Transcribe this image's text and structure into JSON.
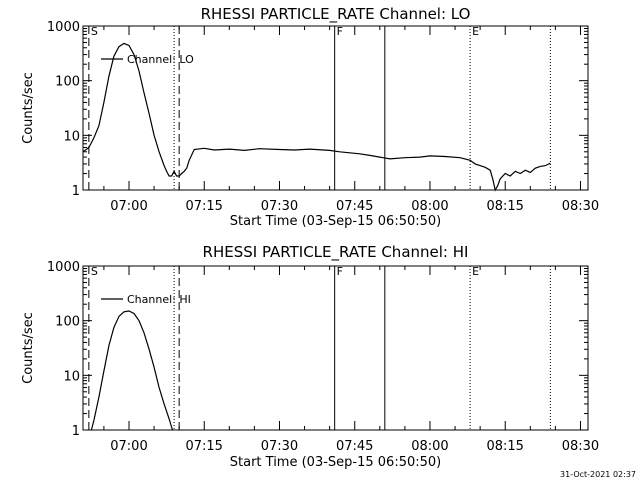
{
  "footer": {
    "date": "31-Oct-2021 02:37"
  },
  "chart_data": [
    {
      "type": "line",
      "title": "RHESSI PARTICLE_RATE Channel: LO",
      "xlabel": "Start Time (03-Sep-15 06:50:50)",
      "ylabel": "Counts/sec",
      "xlim": [
        "06:50:50",
        "08:31:30"
      ],
      "ylim": [
        1,
        1000
      ],
      "yscale": "log",
      "x_ticks": [
        "07:00",
        "07:15",
        "07:30",
        "07:45",
        "08:00",
        "08:15",
        "08:30"
      ],
      "y_ticks": [
        "1",
        "10",
        "100",
        "1000"
      ],
      "legend": "Channel: LO",
      "legend_position": "top-left",
      "markers": [
        {
          "label": "S",
          "time": "06:52:00",
          "style": "dashed"
        },
        {
          "label": "",
          "time": "07:09:00",
          "style": "dotted"
        },
        {
          "label": "",
          "time": "07:10:00",
          "style": "dashed"
        },
        {
          "label": "F",
          "time": "07:41:00",
          "style": "solid"
        },
        {
          "label": "",
          "time": "07:51:00",
          "style": "solid"
        },
        {
          "label": "E",
          "time": "08:08:00",
          "style": "dotted"
        },
        {
          "label": "",
          "time": "08:24:00",
          "style": "dotted"
        }
      ],
      "series": [
        {
          "name": "Channel: LO",
          "x": [
            "06:50:50",
            "06:52:00",
            "06:53:00",
            "06:54:00",
            "06:55:00",
            "06:56:00",
            "06:57:00",
            "06:58:00",
            "06:59:00",
            "07:00:00",
            "07:01:00",
            "07:02:00",
            "07:03:00",
            "07:04:00",
            "07:05:00",
            "07:06:00",
            "07:07:00",
            "07:07:30",
            "07:08:00",
            "07:08:30",
            "07:09:00",
            "07:09:30",
            "07:10:00",
            "07:10:30",
            "07:11:00",
            "07:11:30",
            "07:12:00",
            "07:13:00",
            "07:15:00",
            "07:17:00",
            "07:20:00",
            "07:23:00",
            "07:26:00",
            "07:30:00",
            "07:33:00",
            "07:36:00",
            "07:40:00",
            "07:42:00",
            "07:44:00",
            "07:46:00",
            "07:48:00",
            "07:50:00",
            "07:52:00",
            "07:55:00",
            "07:58:00",
            "08:00:00",
            "08:03:00",
            "08:06:00",
            "08:08:00",
            "08:09:00",
            "08:10:00",
            "08:11:00",
            "08:12:00",
            "08:12:30",
            "08:13:00",
            "08:13:30",
            "08:14:00",
            "08:15:00",
            "08:16:00",
            "08:17:00",
            "08:18:00",
            "08:19:00",
            "08:20:00",
            "08:21:00",
            "08:22:00",
            "08:23:00",
            "08:24:00"
          ],
          "y": [
            5,
            6,
            9,
            15,
            40,
            120,
            280,
            420,
            480,
            440,
            300,
            150,
            60,
            25,
            10,
            5,
            2.8,
            2.2,
            1.8,
            1.8,
            2.2,
            1.8,
            1.8,
            2.0,
            2.2,
            2.5,
            3.5,
            5.5,
            5.8,
            5.4,
            5.6,
            5.3,
            5.7,
            5.5,
            5.4,
            5.6,
            5.3,
            5.0,
            4.8,
            4.6,
            4.3,
            4.0,
            3.7,
            3.9,
            4.0,
            4.2,
            4.1,
            3.9,
            3.5,
            3.0,
            2.8,
            2.6,
            2.3,
            1.6,
            1.0,
            1.2,
            1.6,
            2.0,
            1.8,
            2.2,
            2.0,
            2.3,
            2.1,
            2.5,
            2.7,
            2.8,
            3.1
          ]
        }
      ]
    },
    {
      "type": "line",
      "title": "RHESSI PARTICLE_RATE Channel: HI",
      "xlabel": "Start Time (03-Sep-15 06:50:50)",
      "ylabel": "Counts/sec",
      "xlim": [
        "06:50:50",
        "08:31:30"
      ],
      "ylim": [
        1,
        1000
      ],
      "yscale": "log",
      "x_ticks": [
        "07:00",
        "07:15",
        "07:30",
        "07:45",
        "08:00",
        "08:15",
        "08:30"
      ],
      "y_ticks": [
        "1",
        "10",
        "100",
        "1000"
      ],
      "legend": "Channel: HI",
      "legend_position": "top-left",
      "markers": [
        {
          "label": "S",
          "time": "06:52:00",
          "style": "dashed"
        },
        {
          "label": "",
          "time": "07:09:00",
          "style": "dotted"
        },
        {
          "label": "",
          "time": "07:10:00",
          "style": "dashed"
        },
        {
          "label": "F",
          "time": "07:41:00",
          "style": "solid"
        },
        {
          "label": "",
          "time": "07:51:00",
          "style": "solid"
        },
        {
          "label": "E",
          "time": "08:08:00",
          "style": "dotted"
        },
        {
          "label": "",
          "time": "08:24:00",
          "style": "dotted"
        }
      ],
      "series": [
        {
          "name": "Channel: HI",
          "x": [
            "06:52:30",
            "06:53:00",
            "06:54:00",
            "06:55:00",
            "06:56:00",
            "06:57:00",
            "06:58:00",
            "06:59:00",
            "07:00:00",
            "07:01:00",
            "07:02:00",
            "07:03:00",
            "07:04:00",
            "07:05:00",
            "07:06:00",
            "07:07:00",
            "07:08:00",
            "07:08:40"
          ],
          "y": [
            1.0,
            1.5,
            4,
            12,
            35,
            75,
            120,
            145,
            150,
            135,
            100,
            60,
            30,
            14,
            6,
            3,
            1.6,
            1.0
          ]
        }
      ]
    }
  ]
}
